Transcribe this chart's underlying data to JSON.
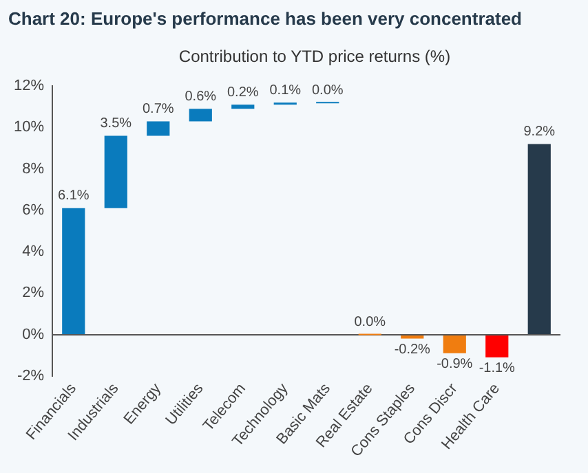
{
  "chart_data": {
    "type": "bar",
    "title": "Chart 20: Europe's performance has been very concentrated",
    "subtitle": "Contribution to YTD price returns (%)",
    "categories": [
      "Financials",
      "Industrials",
      "Energy",
      "Utilities",
      "Telecom",
      "Technology",
      "Basic Mats",
      "Real Estate",
      "Cons Staples",
      "Cons Discr",
      "Health Care",
      null
    ],
    "values": [
      6.1,
      3.5,
      0.7,
      0.6,
      0.2,
      0.1,
      0.0,
      0.0,
      -0.2,
      -0.9,
      -1.1,
      9.2
    ],
    "base": [
      0,
      6.1,
      9.6,
      10.3,
      10.9,
      11.1,
      11.2,
      0,
      0,
      0,
      0,
      0
    ],
    "colors": [
      "#0a7bbd",
      "#0a7bbd",
      "#0a7bbd",
      "#0a7bbd",
      "#0a7bbd",
      "#0a7bbd",
      "#0a7bbd",
      "#f07d10",
      "#f07d10",
      "#f07d10",
      "#ff0000",
      "#263a4b"
    ],
    "value_labels": [
      "6.1%",
      "3.5%",
      "0.7%",
      "0.6%",
      "0.2%",
      "0.1%",
      "0.0%",
      "0.0%",
      "-0.2%",
      "-0.9%",
      "-1.1%",
      "9.2%"
    ],
    "ylim": [
      -2,
      12
    ],
    "yticks": [
      {
        "value": -2,
        "label": "-2%"
      },
      {
        "value": 0,
        "label": "0%"
      },
      {
        "value": 2,
        "label": "2%"
      },
      {
        "value": 4,
        "label": "4%"
      },
      {
        "value": 6,
        "label": "6%"
      },
      {
        "value": 8,
        "label": "8%"
      },
      {
        "value": 10,
        "label": "10%"
      },
      {
        "value": 12,
        "label": "12%"
      }
    ],
    "ref_lines": [
      {
        "axis": "y",
        "value": 0,
        "color": "#555555"
      }
    ],
    "grid": false,
    "legend": false
  }
}
